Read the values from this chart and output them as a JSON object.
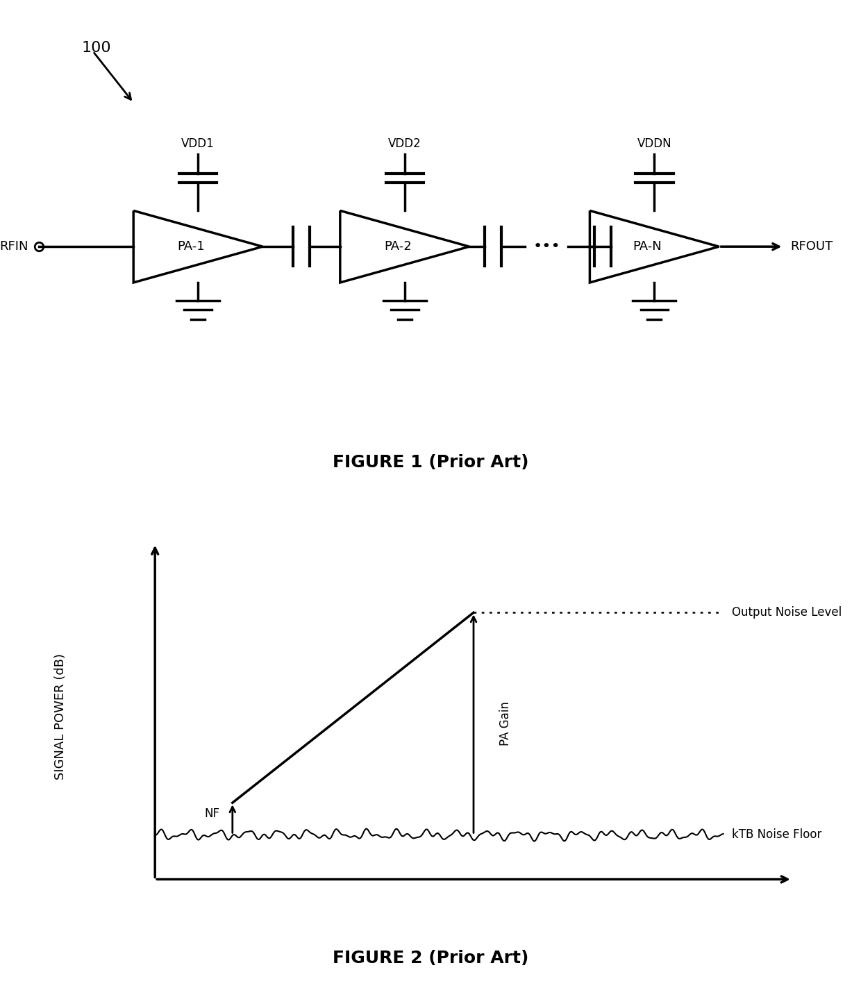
{
  "fig_width": 12.4,
  "fig_height": 14.23,
  "bg_color": "#ffffff",
  "label_100": "100",
  "fig1_caption": "FIGURE 1 (Prior Art)",
  "fig2_caption": "FIGURE 2 (Prior Art)",
  "rfin_label": "RFIN",
  "rfout_label": "RFOUT",
  "pa_labels": [
    "PA-1",
    "PA-2",
    "PA-N"
  ],
  "vdd_labels": [
    "VDD1",
    "VDD2",
    "VDDN"
  ],
  "dots_label": "•••",
  "ylabel": "SIGNAL POWER (dB)",
  "nf_label": "NF",
  "pa_gain_label": "PA Gain",
  "output_noise_label": "Output Noise Level",
  "ktb_label": "kTB Noise Floor",
  "line_color": "#000000",
  "text_color": "#000000"
}
